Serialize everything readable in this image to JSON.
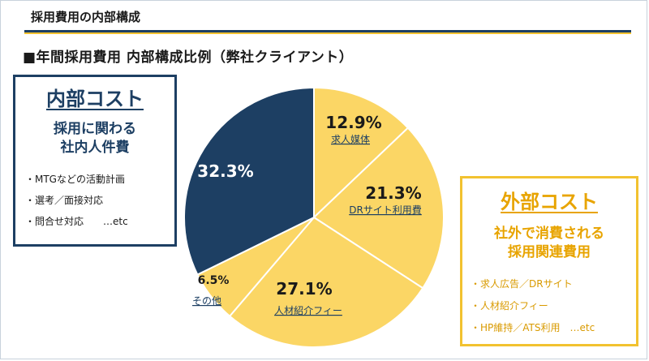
{
  "header": {
    "title": "採用費用の内部構成",
    "subtitle": "■年間採用費用 内部構成比例（弊社クライアント）"
  },
  "internal_box": {
    "heading": "内部コスト",
    "sub_line1": "採用に関わる",
    "sub_line2": "社内人件費",
    "bullets": [
      "・MTGなどの活動計画",
      "・選考／面接対応",
      "・問合せ対応　　…etc"
    ]
  },
  "external_box": {
    "heading": "外部コスト",
    "sub_line1": "社外で消費される",
    "sub_line2": "採用関連費用",
    "bullets": [
      "・求人広告／DRサイト",
      "・人材紹介フィー",
      "・HP維持／ATS利用　…etc"
    ]
  },
  "colors": {
    "navy": "#1d3f63",
    "gold": "#fbd665",
    "gold_text": "#e8a400",
    "gold_border": "#f2c230"
  },
  "chart_data": {
    "type": "pie",
    "start": "12 o'clock, clockwise",
    "slices": [
      {
        "label": "求人媒体",
        "value": 12.9,
        "display": "12.9%",
        "color": "#fbd665"
      },
      {
        "label": "DRサイト利用費",
        "value": 21.3,
        "display": "21.3%",
        "color": "#fbd665"
      },
      {
        "label": "人材紹介フィー",
        "value": 27.1,
        "display": "27.1%",
        "color": "#fbd665"
      },
      {
        "label": "その他",
        "value": 6.5,
        "display": "6.5%",
        "color": "#fbd665"
      },
      {
        "label": "",
        "value": 32.3,
        "display": "32.3%",
        "color": "#1d3f63"
      }
    ]
  }
}
